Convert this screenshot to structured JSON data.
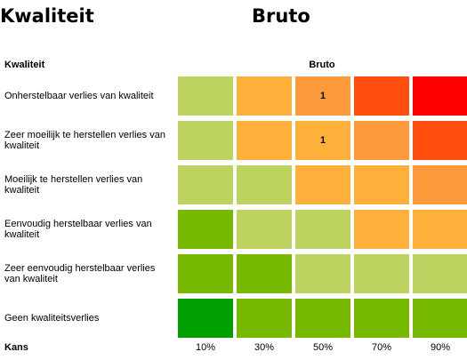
{
  "chart_data": {
    "type": "heatmap",
    "title": "Kwaliteit",
    "subtitle": "Bruto",
    "y_label": "Kwaliteit",
    "column_label": "Bruto",
    "x_label": "Kans",
    "categories": [
      "10%",
      "30%",
      "50%",
      "70%",
      "90%"
    ],
    "rows": [
      "Onherstelbaar verlies van kwaliteit",
      "Zeer moeilijk te herstellen verlies van kwaliteit",
      "Moeilijk te herstellen verlies van kwaliteit",
      "Eenvoudig herstelbaar verlies van kwaliteit",
      "Zeer eenvoudig herstelbaar verlies van kwaliteit",
      "Geen kwaliteitsverlies"
    ],
    "values": [
      [
        null,
        null,
        1,
        null,
        null
      ],
      [
        null,
        null,
        1,
        null,
        null
      ],
      [
        null,
        null,
        null,
        null,
        null
      ],
      [
        null,
        null,
        null,
        null,
        null
      ],
      [
        null,
        null,
        null,
        null,
        null
      ],
      [
        null,
        null,
        null,
        null,
        null
      ]
    ],
    "colors": [
      [
        "#bcd35f",
        "#ffb03b",
        "#ff9a3c",
        "#ff4e0e",
        "#ff0000"
      ],
      [
        "#bcd35f",
        "#ffb03b",
        "#ffb03b",
        "#ff9a3c",
        "#ff4e0e"
      ],
      [
        "#bcd35f",
        "#bcd35f",
        "#ffb03b",
        "#ffb03b",
        "#ff9a3c"
      ],
      [
        "#76b900",
        "#bcd35f",
        "#bcd35f",
        "#ffb03b",
        "#ffb03b"
      ],
      [
        "#76b900",
        "#76b900",
        "#bcd35f",
        "#bcd35f",
        "#bcd35f"
      ],
      [
        "#00a000",
        "#76b900",
        "#76b900",
        "#76b900",
        "#76b900"
      ]
    ]
  }
}
